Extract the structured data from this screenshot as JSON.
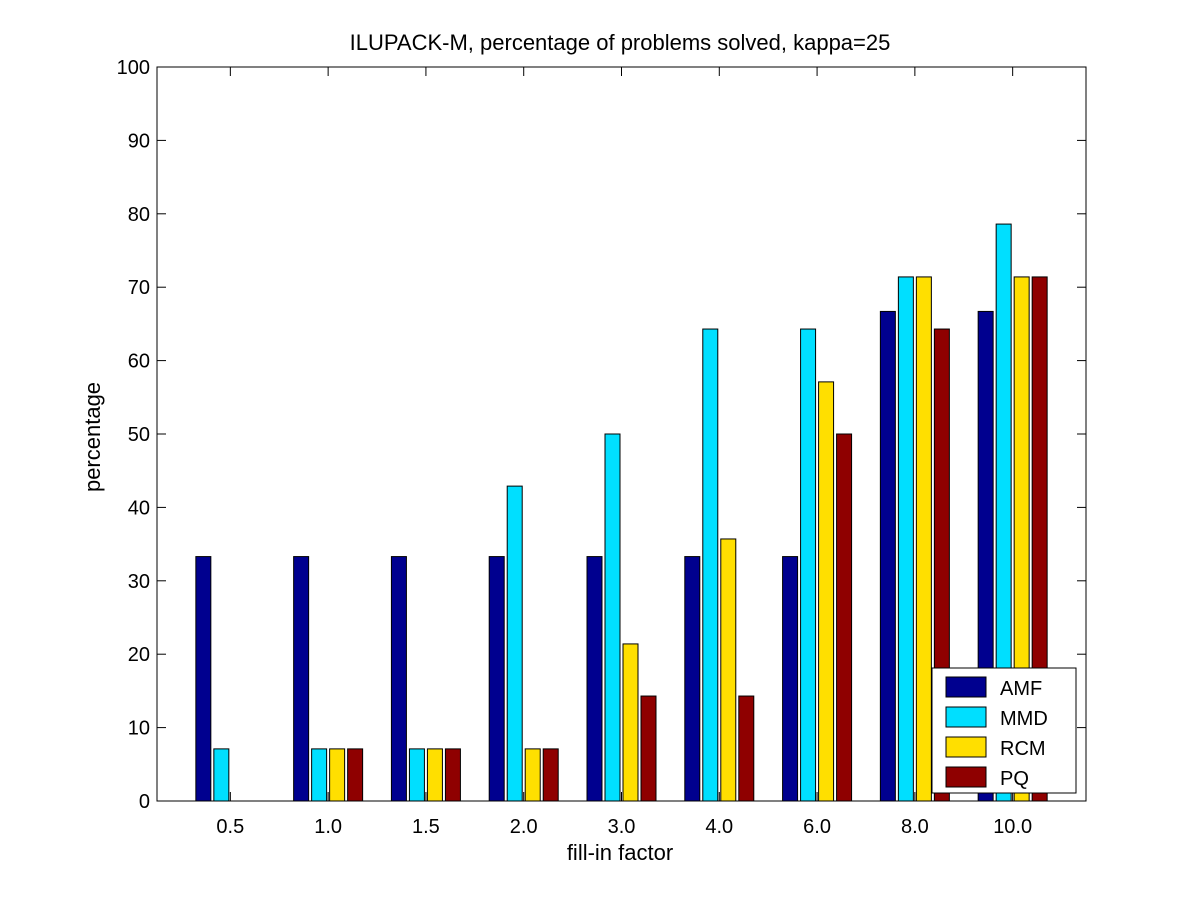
{
  "chart_data": {
    "type": "bar",
    "title": "ILUPACK-M, percentage of problems solved, kappa=25",
    "xlabel": "fill-in factor",
    "ylabel": "percentage",
    "ylim": [
      0,
      100
    ],
    "yticks": [
      "0",
      "10",
      "20",
      "30",
      "40",
      "50",
      "60",
      "70",
      "80",
      "90",
      "100"
    ],
    "categories": [
      "0.5",
      "1.0",
      "1.5",
      "2.0",
      "3.0",
      "4.0",
      "6.0",
      "8.0",
      "10.0"
    ],
    "series": [
      {
        "name": "AMF",
        "color": "#00008f",
        "values": [
          33.3,
          33.3,
          33.3,
          33.3,
          33.3,
          33.3,
          33.3,
          66.7,
          66.7
        ]
      },
      {
        "name": "MMD",
        "color": "#00dfff",
        "values": [
          7.1,
          7.1,
          7.1,
          42.9,
          50.0,
          64.3,
          64.3,
          71.4,
          78.6
        ]
      },
      {
        "name": "RCM",
        "color": "#ffdf00",
        "values": [
          0,
          7.1,
          7.1,
          7.1,
          21.4,
          35.7,
          57.1,
          71.4,
          71.4
        ]
      },
      {
        "name": "PQ",
        "color": "#8f0000",
        "values": [
          0,
          7.1,
          7.1,
          7.1,
          14.3,
          14.3,
          50.0,
          64.3,
          71.4
        ]
      }
    ],
    "legend_position": "bottom-right",
    "grid": false
  }
}
